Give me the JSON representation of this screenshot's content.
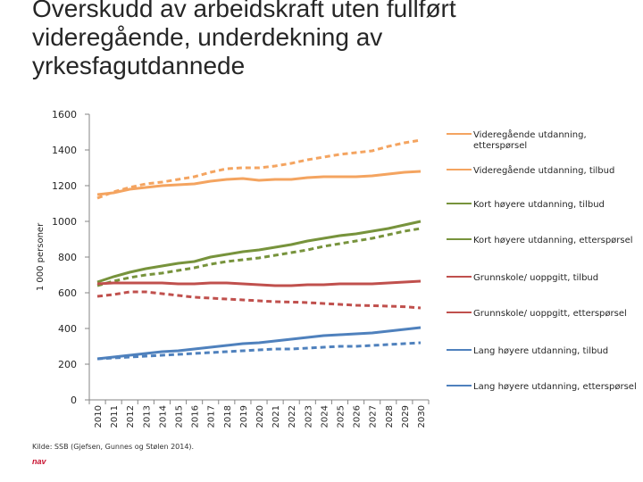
{
  "title_lines": [
    "Overskudd av arbeidskraft uten fullført",
    "videregående, underdekning av",
    "yrkesfagutdannede"
  ],
  "source": "Kilde: SSB (Gjefsen, Gunnes og Stølen 2014).",
  "logo_text": "nav",
  "chart_data": {
    "type": "line",
    "title": "Overskudd av arbeidskraft uten fullført videregående, underdekning av yrkesfagutdannede",
    "xlabel": "",
    "ylabel": "1 000 personer",
    "ylim": [
      0,
      1600
    ],
    "yticks": [
      0,
      200,
      400,
      600,
      800,
      1000,
      1200,
      1400,
      1600
    ],
    "x": [
      2010,
      2011,
      2012,
      2013,
      2014,
      2015,
      2016,
      2017,
      2018,
      2019,
      2020,
      2021,
      2022,
      2023,
      2024,
      2025,
      2026,
      2027,
      2028,
      2029,
      2030
    ],
    "legend_position": "right",
    "grid": false,
    "series": [
      {
        "name": "Videregående utdanning, etterspørsel",
        "color": "#f4a460",
        "style": "dashed",
        "values": [
          1130,
          1165,
          1190,
          1210,
          1220,
          1235,
          1250,
          1275,
          1295,
          1300,
          1300,
          1310,
          1325,
          1345,
          1360,
          1375,
          1385,
          1395,
          1420,
          1440,
          1455
        ]
      },
      {
        "name": "Videregående utdanning, tilbud",
        "color": "#f4a460",
        "style": "solid",
        "values": [
          1150,
          1160,
          1180,
          1190,
          1200,
          1205,
          1210,
          1225,
          1235,
          1240,
          1230,
          1235,
          1235,
          1245,
          1250,
          1250,
          1250,
          1255,
          1265,
          1275,
          1280
        ]
      },
      {
        "name": "Kort høyere utdanning, tilbud",
        "color": "#77933c",
        "style": "solid",
        "values": [
          660,
          690,
          715,
          735,
          750,
          765,
          775,
          800,
          815,
          830,
          840,
          855,
          870,
          890,
          905,
          920,
          930,
          945,
          960,
          980,
          1000
        ]
      },
      {
        "name": "Kort høyere utdanning, etterspørsel",
        "color": "#77933c",
        "style": "dashed",
        "values": [
          640,
          665,
          685,
          700,
          710,
          725,
          740,
          760,
          775,
          785,
          795,
          810,
          825,
          840,
          860,
          875,
          890,
          905,
          925,
          945,
          960
        ]
      },
      {
        "name": "Grunnskole/ uoppgitt, tilbud",
        "color": "#c0504d",
        "style": "solid",
        "values": [
          650,
          655,
          655,
          655,
          655,
          650,
          650,
          655,
          655,
          650,
          645,
          640,
          640,
          645,
          645,
          650,
          650,
          650,
          655,
          660,
          665
        ]
      },
      {
        "name": "Grunnskole/ uoppgitt, etterspørsel",
        "color": "#c0504d",
        "style": "dashed",
        "values": [
          580,
          590,
          605,
          605,
          595,
          585,
          575,
          570,
          565,
          560,
          555,
          550,
          548,
          545,
          540,
          535,
          530,
          528,
          525,
          522,
          515
        ]
      },
      {
        "name": "Lang høyere utdanning, tilbud",
        "color": "#4f81bd",
        "style": "solid",
        "values": [
          230,
          240,
          250,
          260,
          270,
          275,
          285,
          295,
          305,
          315,
          320,
          330,
          340,
          350,
          360,
          365,
          370,
          375,
          385,
          395,
          405
        ]
      },
      {
        "name": "Lang høyere utdanning, etterspørsel",
        "color": "#4f81bd",
        "style": "dashed",
        "values": [
          230,
          235,
          240,
          245,
          250,
          255,
          260,
          265,
          270,
          275,
          280,
          285,
          285,
          290,
          295,
          300,
          300,
          305,
          310,
          315,
          320
        ]
      }
    ]
  }
}
